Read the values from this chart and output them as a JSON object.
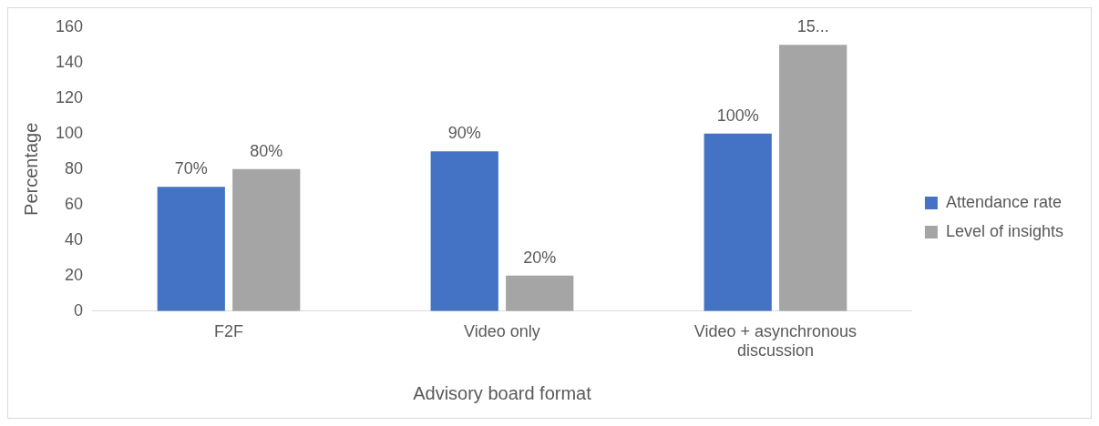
{
  "chart_data": {
    "type": "bar",
    "xlabel": "Advisory board format",
    "ylabel": "Percentage",
    "categories": [
      "F2F",
      "Video only",
      "Video + asynchronous discussion"
    ],
    "series": [
      {
        "name": "Attendance rate",
        "color": "#4472c4",
        "values": [
          70,
          90,
          100
        ],
        "value_labels": [
          "70%",
          "90%",
          "100%"
        ]
      },
      {
        "name": "Level of insights",
        "color": "#a5a5a5",
        "values": [
          80,
          20,
          150
        ],
        "value_labels": [
          "80%",
          "20%",
          "15..."
        ]
      }
    ],
    "ylim": [
      0,
      160
    ],
    "yticks": [
      0,
      20,
      40,
      60,
      80,
      100,
      120,
      140,
      160
    ],
    "grid": false,
    "legend": "right"
  }
}
